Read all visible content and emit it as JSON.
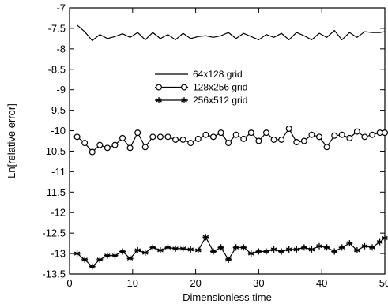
{
  "chart_data": {
    "type": "line",
    "title": "",
    "xlabel": "Dimensionless time",
    "ylabel": "Ln[relative error]",
    "xlim": [
      0,
      50
    ],
    "ylim": [
      -13.5,
      -7
    ],
    "xticks": [
      0,
      10,
      20,
      30,
      40,
      50
    ],
    "xtick_labels": [
      "0",
      "10",
      "20",
      "30",
      "40",
      "50"
    ],
    "yticks": [
      -13.5,
      -13,
      -12.5,
      -12,
      -11.5,
      -11,
      -10.5,
      -10,
      -9.5,
      -9,
      -8.5,
      -8,
      -7.5,
      -7
    ],
    "ytick_labels": [
      "-13.5",
      "-13",
      "-12.5",
      "-12",
      "-11.5",
      "-11",
      "-10.5",
      "-10",
      "-9.5",
      "-9",
      "-8.5",
      "-8",
      "-7.5",
      "-7"
    ],
    "grid": false,
    "legend_position": "upper-center",
    "series": [
      {
        "name": "64x128 grid",
        "marker": "none",
        "color": "#000000",
        "x": [
          1.2,
          2.4,
          3.6,
          4.8,
          6.0,
          7.2,
          8.4,
          9.6,
          10.8,
          12.0,
          13.2,
          14.4,
          15.6,
          16.8,
          18.0,
          19.2,
          20.4,
          21.6,
          22.8,
          24.0,
          25.2,
          26.4,
          27.6,
          28.8,
          30.0,
          31.2,
          32.4,
          33.6,
          34.8,
          36.0,
          37.2,
          38.4,
          39.6,
          40.8,
          42.0,
          43.2,
          44.4,
          45.6,
          46.8,
          48.0,
          49.2,
          50.0
        ],
        "y": [
          -7.42,
          -7.58,
          -7.8,
          -7.65,
          -7.75,
          -7.7,
          -7.63,
          -7.72,
          -7.6,
          -7.78,
          -7.6,
          -7.75,
          -7.65,
          -7.78,
          -7.62,
          -7.75,
          -7.7,
          -7.68,
          -7.72,
          -7.68,
          -7.6,
          -7.75,
          -7.62,
          -7.7,
          -7.78,
          -7.65,
          -7.72,
          -7.62,
          -7.78,
          -7.6,
          -7.68,
          -7.78,
          -7.62,
          -7.72,
          -7.55,
          -7.78,
          -7.6,
          -7.72,
          -7.58,
          -7.6,
          -7.6,
          -7.58
        ]
      },
      {
        "name": "128x256 grid",
        "marker": "circle",
        "color": "#000000",
        "x": [
          1.2,
          2.4,
          3.6,
          4.8,
          6.0,
          7.2,
          8.4,
          9.6,
          10.8,
          12.0,
          13.2,
          14.4,
          15.6,
          16.8,
          18.0,
          19.2,
          20.4,
          21.6,
          22.8,
          24.0,
          25.2,
          26.4,
          27.6,
          28.8,
          30.0,
          31.2,
          32.4,
          33.6,
          34.8,
          36.0,
          37.2,
          38.4,
          39.6,
          40.8,
          42.0,
          43.2,
          44.4,
          45.6,
          46.8,
          48.0,
          49.2,
          50.0
        ],
        "y": [
          -10.15,
          -10.3,
          -10.52,
          -10.35,
          -10.42,
          -10.35,
          -10.18,
          -10.42,
          -10.05,
          -10.4,
          -10.15,
          -10.15,
          -10.15,
          -10.22,
          -10.22,
          -10.3,
          -10.2,
          -10.1,
          -10.15,
          -10.05,
          -10.3,
          -10.1,
          -10.2,
          -10.05,
          -10.25,
          -10.05,
          -10.22,
          -10.22,
          -9.95,
          -10.28,
          -10.25,
          -10.1,
          -10.15,
          -10.4,
          -10.12,
          -10.1,
          -10.18,
          -10.02,
          -10.15,
          -10.1,
          -10.05,
          -10.05
        ]
      },
      {
        "name": "256x512 grid",
        "marker": "asterisk",
        "color": "#000000",
        "x": [
          1.2,
          2.4,
          3.6,
          4.8,
          6.0,
          7.2,
          8.4,
          9.6,
          10.8,
          12.0,
          13.2,
          14.4,
          15.6,
          16.8,
          18.0,
          19.2,
          20.4,
          21.6,
          22.8,
          24.0,
          25.2,
          26.4,
          27.6,
          28.8,
          30.0,
          31.2,
          32.4,
          33.6,
          34.8,
          36.0,
          37.2,
          38.4,
          39.6,
          40.8,
          42.0,
          43.2,
          44.4,
          45.6,
          46.8,
          48.0,
          49.2,
          50.0
        ],
        "y": [
          -13.0,
          -13.15,
          -13.32,
          -13.15,
          -13.05,
          -13.05,
          -12.95,
          -13.12,
          -12.92,
          -12.98,
          -12.85,
          -12.92,
          -12.85,
          -12.88,
          -12.88,
          -12.9,
          -12.92,
          -12.6,
          -12.95,
          -12.85,
          -13.15,
          -12.85,
          -12.85,
          -13.0,
          -12.95,
          -12.95,
          -12.9,
          -12.95,
          -12.9,
          -12.9,
          -12.85,
          -12.9,
          -12.82,
          -12.85,
          -12.95,
          -12.85,
          -12.75,
          -12.92,
          -12.82,
          -12.85,
          -12.72,
          -12.62
        ]
      }
    ]
  }
}
